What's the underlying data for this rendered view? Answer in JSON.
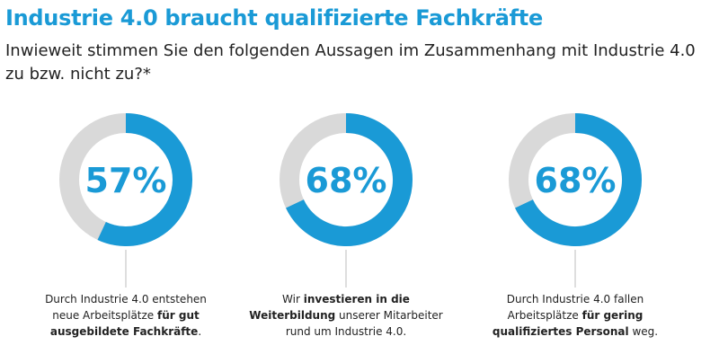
{
  "title": "Industrie 4.0 braucht qualifizierte Fachkräfte",
  "subtitle": "Inwieweit stimmen Sie den folgenden Aussagen im Zusammenhang mit Industrie 4.0 zu bzw. nicht zu?*",
  "colors": {
    "accent": "#1a9ad6",
    "track": "#d9d9d9",
    "text": "#222222",
    "connector": "#bcbcbc"
  },
  "chart_data": [
    {
      "type": "pie",
      "value": 57,
      "max": 100,
      "center_label": "57%",
      "caption_lines": [
        [
          {
            "text": "Durch Industrie 4.0 entstehen",
            "bold": false
          }
        ],
        [
          {
            "text": "neue Arbeitsplätze ",
            "bold": false
          },
          {
            "text": "für gut",
            "bold": true
          }
        ],
        [
          {
            "text": "ausgebildete Fachkräfte",
            "bold": true
          },
          {
            "text": ".",
            "bold": false
          }
        ]
      ]
    },
    {
      "type": "pie",
      "value": 68,
      "max": 100,
      "center_label": "68%",
      "caption_lines": [
        [
          {
            "text": "Wir ",
            "bold": false
          },
          {
            "text": "investieren in die",
            "bold": true
          }
        ],
        [
          {
            "text": "Weiterbildung",
            "bold": true
          },
          {
            "text": " unserer Mitarbeiter",
            "bold": false
          }
        ],
        [
          {
            "text": "rund um Industrie 4.0.",
            "bold": false
          }
        ]
      ]
    },
    {
      "type": "pie",
      "value": 68,
      "max": 100,
      "center_label": "68%",
      "caption_lines": [
        [
          {
            "text": "Durch Industrie 4.0 fallen",
            "bold": false
          }
        ],
        [
          {
            "text": "Arbeitsplätze ",
            "bold": false
          },
          {
            "text": "für gering",
            "bold": true
          }
        ],
        [
          {
            "text": "qualifiziertes Personal",
            "bold": true
          },
          {
            "text": " weg.",
            "bold": false
          }
        ]
      ]
    }
  ]
}
